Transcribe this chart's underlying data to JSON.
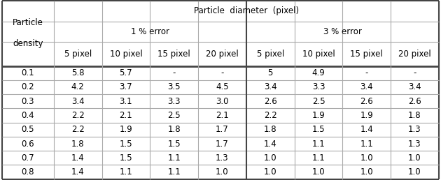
{
  "title": "Particle  diameter  (pixel)",
  "col_group1": "1 % error",
  "col_group2": "3 % error",
  "sub_headers": [
    "5 pixel",
    "10 pixel",
    "15 pixel",
    "20 pixel",
    "5 pixel",
    "10 pixel",
    "15 pixel",
    "20 pixel"
  ],
  "row_labels": [
    "0.1",
    "0.2",
    "0.3",
    "0.4",
    "0.5",
    "0.6",
    "0.7",
    "0.8"
  ],
  "table_data": [
    [
      "5.8",
      "5.7",
      "-",
      "-",
      "5",
      "4.9",
      "-",
      "-"
    ],
    [
      "4.2",
      "3.7",
      "3.5",
      "4.5",
      "3.4",
      "3.3",
      "3.4",
      "3.4"
    ],
    [
      "3.4",
      "3.1",
      "3.3",
      "3.0",
      "2.6",
      "2.5",
      "2.6",
      "2.6"
    ],
    [
      "2.2",
      "2.1",
      "2.5",
      "2.1",
      "2.2",
      "1.9",
      "1.9",
      "1.8"
    ],
    [
      "2.2",
      "1.9",
      "1.8",
      "1.7",
      "1.8",
      "1.5",
      "1.4",
      "1.3"
    ],
    [
      "1.8",
      "1.5",
      "1.5",
      "1.7",
      "1.4",
      "1.1",
      "1.1",
      "1.3"
    ],
    [
      "1.4",
      "1.5",
      "1.1",
      "1.3",
      "1.0",
      "1.1",
      "1.0",
      "1.0"
    ],
    [
      "1.4",
      "1.1",
      "1.1",
      "1.0",
      "1.0",
      "1.0",
      "1.0",
      "1.0"
    ]
  ],
  "bg_color": "#ffffff",
  "line_color": "#aaaaaa",
  "thick_line_color": "#444444",
  "text_color": "#000000",
  "fontsize": 8.5
}
